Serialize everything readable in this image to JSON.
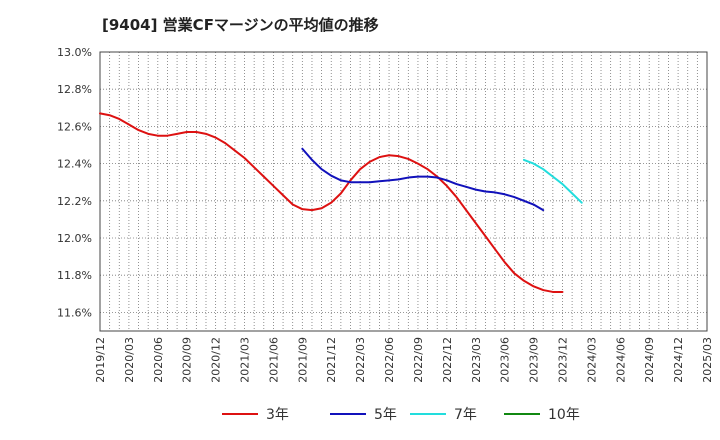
{
  "chart_data": {
    "type": "line",
    "title": "[9404]  営業CFマージンの平均値の推移",
    "xlabel": "",
    "ylabel": "",
    "ylim": [
      11.5,
      13.0
    ],
    "y_ticks": [
      "11.6%",
      "11.8%",
      "12.0%",
      "12.2%",
      "12.4%",
      "12.6%",
      "12.8%",
      "13.0%"
    ],
    "x_ticks": [
      "2019/12",
      "2020/03",
      "2020/06",
      "2020/09",
      "2020/12",
      "2021/03",
      "2021/06",
      "2021/09",
      "2021/12",
      "2022/03",
      "2022/06",
      "2022/09",
      "2022/12",
      "2023/03",
      "2023/06",
      "2023/09",
      "2023/12",
      "2024/03",
      "2024/06",
      "2024/09",
      "2024/12",
      "2025/03"
    ],
    "grid": true,
    "legend_position": "bottom",
    "series": [
      {
        "name": "3年",
        "color": "#dd1111",
        "points": [
          [
            "2019/12",
            12.67
          ],
          [
            "2020/01",
            12.66
          ],
          [
            "2020/02",
            12.64
          ],
          [
            "2020/03",
            12.61
          ],
          [
            "2020/04",
            12.58
          ],
          [
            "2020/05",
            12.56
          ],
          [
            "2020/06",
            12.55
          ],
          [
            "2020/07",
            12.55
          ],
          [
            "2020/08",
            12.56
          ],
          [
            "2020/09",
            12.57
          ],
          [
            "2020/10",
            12.57
          ],
          [
            "2020/11",
            12.56
          ],
          [
            "2020/12",
            12.54
          ],
          [
            "2021/01",
            12.51
          ],
          [
            "2021/02",
            12.47
          ],
          [
            "2021/03",
            12.43
          ],
          [
            "2021/04",
            12.38
          ],
          [
            "2021/05",
            12.33
          ],
          [
            "2021/06",
            12.28
          ],
          [
            "2021/07",
            12.23
          ],
          [
            "2021/08",
            12.18
          ],
          [
            "2021/09",
            12.155
          ],
          [
            "2021/10",
            12.15
          ],
          [
            "2021/11",
            12.16
          ],
          [
            "2021/12",
            12.19
          ],
          [
            "2022/01",
            12.24
          ],
          [
            "2022/02",
            12.31
          ],
          [
            "2022/03",
            12.37
          ],
          [
            "2022/04",
            12.41
          ],
          [
            "2022/05",
            12.435
          ],
          [
            "2022/06",
            12.445
          ],
          [
            "2022/07",
            12.44
          ],
          [
            "2022/08",
            12.425
          ],
          [
            "2022/09",
            12.4
          ],
          [
            "2022/10",
            12.37
          ],
          [
            "2022/11",
            12.33
          ],
          [
            "2022/12",
            12.28
          ],
          [
            "2023/01",
            12.22
          ],
          [
            "2023/02",
            12.15
          ],
          [
            "2023/03",
            12.08
          ],
          [
            "2023/04",
            12.01
          ],
          [
            "2023/05",
            11.94
          ],
          [
            "2023/06",
            11.87
          ],
          [
            "2023/07",
            11.81
          ],
          [
            "2023/08",
            11.77
          ],
          [
            "2023/09",
            11.74
          ],
          [
            "2023/10",
            11.72
          ],
          [
            "2023/11",
            11.71
          ],
          [
            "2023/12",
            11.71
          ]
        ]
      },
      {
        "name": "5年",
        "color": "#1111bb",
        "points": [
          [
            "2021/09",
            12.48
          ],
          [
            "2021/10",
            12.42
          ],
          [
            "2021/11",
            12.37
          ],
          [
            "2021/12",
            12.335
          ],
          [
            "2022/01",
            12.31
          ],
          [
            "2022/02",
            12.3
          ],
          [
            "2022/03",
            12.3
          ],
          [
            "2022/04",
            12.3
          ],
          [
            "2022/05",
            12.305
          ],
          [
            "2022/06",
            12.31
          ],
          [
            "2022/07",
            12.315
          ],
          [
            "2022/08",
            12.325
          ],
          [
            "2022/09",
            12.33
          ],
          [
            "2022/10",
            12.33
          ],
          [
            "2022/11",
            12.325
          ],
          [
            "2022/12",
            12.31
          ],
          [
            "2023/01",
            12.29
          ],
          [
            "2023/02",
            12.275
          ],
          [
            "2023/03",
            12.26
          ],
          [
            "2023/04",
            12.25
          ],
          [
            "2023/05",
            12.245
          ],
          [
            "2023/06",
            12.235
          ],
          [
            "2023/07",
            12.22
          ],
          [
            "2023/08",
            12.2
          ],
          [
            "2023/09",
            12.18
          ],
          [
            "2023/10",
            12.15
          ]
        ]
      },
      {
        "name": "7年",
        "color": "#22dddd",
        "points": [
          [
            "2023/08",
            12.42
          ],
          [
            "2023/09",
            12.4
          ],
          [
            "2023/10",
            12.37
          ],
          [
            "2023/11",
            12.33
          ],
          [
            "2023/12",
            12.29
          ],
          [
            "2024/01",
            12.24
          ],
          [
            "2024/02",
            12.19
          ]
        ]
      },
      {
        "name": "10年",
        "color": "#118811",
        "points": []
      }
    ]
  }
}
